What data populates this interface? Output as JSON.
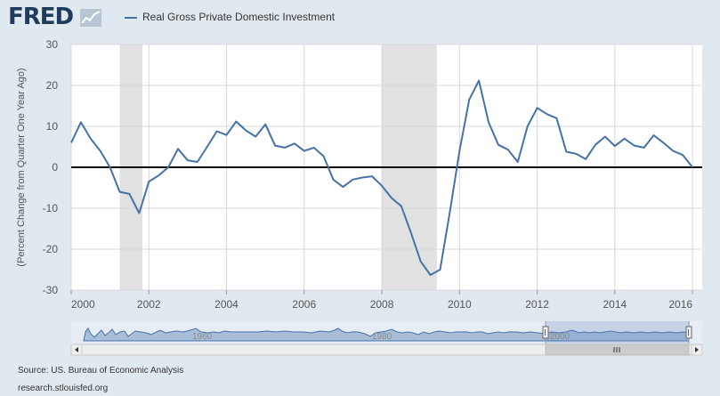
{
  "header": {
    "logo_text": "FRED",
    "logo_icon": "line-graph-icon",
    "legend": {
      "label": "Real Gross Private Domestic Investment",
      "color": "#4572a7"
    }
  },
  "chart_data": {
    "type": "line",
    "title": "",
    "xlabel": "",
    "ylabel": "(Percent Change from Quarter One Year Ago)",
    "xlim": [
      "2000-01-01",
      "2016-04-01"
    ],
    "ylim": [
      -30,
      30
    ],
    "yticks": [
      30,
      20,
      10,
      0,
      -10,
      -20,
      -30
    ],
    "xticks": [
      "2000",
      "2002",
      "2004",
      "2006",
      "2008",
      "2010",
      "2012",
      "2014",
      "2016"
    ],
    "grid": true,
    "zero_line": true,
    "legend": "top-left",
    "recessions": [
      {
        "start": "2001-04-01",
        "end": "2001-11-01"
      },
      {
        "start": "2008-01-01",
        "end": "2009-06-01"
      }
    ],
    "series": [
      {
        "name": "Real Gross Private Domestic Investment",
        "color": "#4572a7",
        "x": [
          "2000-01-01",
          "2000-04-01",
          "2000-07-01",
          "2000-10-01",
          "2001-01-01",
          "2001-04-01",
          "2001-07-01",
          "2001-10-01",
          "2002-01-01",
          "2002-04-01",
          "2002-07-01",
          "2002-10-01",
          "2003-01-01",
          "2003-04-01",
          "2003-07-01",
          "2003-10-01",
          "2004-01-01",
          "2004-04-01",
          "2004-07-01",
          "2004-10-01",
          "2005-01-01",
          "2005-04-01",
          "2005-07-01",
          "2005-10-01",
          "2006-01-01",
          "2006-04-01",
          "2006-07-01",
          "2006-10-01",
          "2007-01-01",
          "2007-04-01",
          "2007-07-01",
          "2007-10-01",
          "2008-01-01",
          "2008-04-01",
          "2008-07-01",
          "2008-10-01",
          "2009-01-01",
          "2009-04-01",
          "2009-07-01",
          "2009-10-01",
          "2010-01-01",
          "2010-04-01",
          "2010-07-01",
          "2010-10-01",
          "2011-01-01",
          "2011-04-01",
          "2011-07-01",
          "2011-10-01",
          "2012-01-01",
          "2012-04-01",
          "2012-07-01",
          "2012-10-01",
          "2013-01-01",
          "2013-04-01",
          "2013-07-01",
          "2013-10-01",
          "2014-01-01",
          "2014-04-01",
          "2014-07-01",
          "2014-10-01",
          "2015-01-01",
          "2015-04-01",
          "2015-07-01",
          "2015-10-01",
          "2016-01-01"
        ],
        "values": [
          6.0,
          11.0,
          7.0,
          4.0,
          0.0,
          -6.0,
          -6.5,
          -11.2,
          -3.5,
          -2.0,
          0.0,
          4.5,
          1.7,
          1.3,
          5.0,
          8.8,
          7.9,
          11.2,
          9.0,
          7.5,
          10.5,
          5.3,
          4.8,
          5.8,
          4.0,
          4.8,
          2.7,
          -3.0,
          -4.8,
          -3.0,
          -2.5,
          -2.2,
          -4.5,
          -7.5,
          -9.5,
          -16.0,
          -23.0,
          -26.3,
          -25.0,
          -11.0,
          4.0,
          16.5,
          21.2,
          11.0,
          5.5,
          4.3,
          1.3,
          10.0,
          14.5,
          13.0,
          12.0,
          3.8,
          3.3,
          2.0,
          5.5,
          7.5,
          5.2,
          7.0,
          5.3,
          4.8,
          7.8,
          6.0,
          4.0,
          3.0,
          0.0
        ]
      }
    ]
  },
  "navigator": {
    "labels": [
      "1960",
      "1980",
      "2000"
    ],
    "scroll_left_icon": "chevron-left-icon",
    "scroll_right_icon": "chevron-right-icon",
    "grip_icon": "grip-icon"
  },
  "footer": {
    "source": "Source: US. Bureau of Economic Analysis",
    "url": "research.stlouisfed.org"
  }
}
